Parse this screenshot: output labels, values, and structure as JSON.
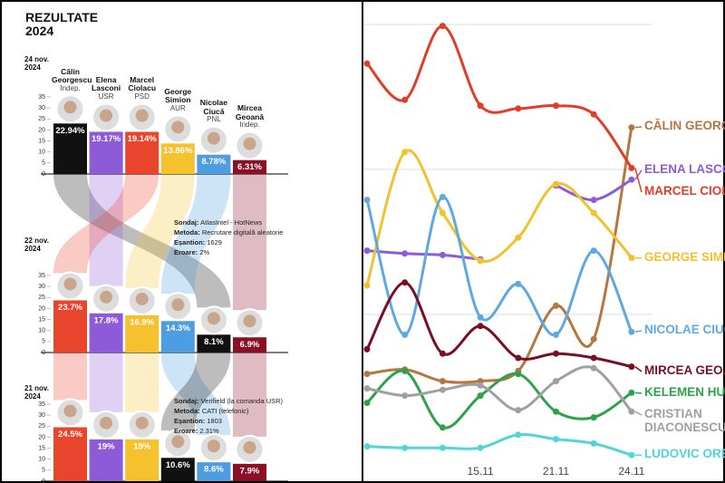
{
  "chart_data": [
    {
      "type": "bar",
      "title": "REZULTATE 2024",
      "date": "24 nov. 2024",
      "categories": [
        "Călin Georgescu",
        "Elena Lasconi",
        "Marcel Ciolacu",
        "George Simion",
        "Nicolae Ciucă",
        "Mircea Geoană"
      ],
      "parties": [
        "Indep.",
        "USR",
        "PSD",
        "AUR",
        "PNL",
        "Indep."
      ],
      "values": [
        22.94,
        19.17,
        19.14,
        13.86,
        8.78,
        6.31
      ],
      "value_labels": [
        "22.94%",
        "19.17%",
        "19.14%",
        "13.86%",
        "8.78%",
        "6.31%"
      ],
      "colors": [
        "#111111",
        "#8e5bd8",
        "#e8452c",
        "#f5c12e",
        "#4d9de0",
        "#8b1026"
      ],
      "ylim": [
        0,
        35
      ],
      "yticks": [
        0,
        5,
        10,
        15,
        20,
        25,
        30,
        35
      ]
    },
    {
      "type": "bar",
      "date": "22 nov. 2024",
      "categories": [
        null,
        null,
        null,
        null,
        null,
        null
      ],
      "values": [
        23.7,
        17.8,
        16.9,
        14.3,
        8.1,
        6.9
      ],
      "value_labels": [
        "23.7%",
        "17.8%",
        "16.9%",
        "14.3%",
        "8.1%",
        "6.9%"
      ],
      "colors": [
        "#e8452c",
        "#8e5bd8",
        "#f5c12e",
        "#4d9de0",
        "#111111",
        "#8b1026"
      ],
      "notes": [
        {
          "label": "Sondaj:",
          "text": "AtlasIntel - HotNews"
        },
        {
          "label": "Metoda:",
          "text": "Recrutare digitală aleatorie"
        },
        {
          "label": "Eșantion:",
          "text": "1629"
        },
        {
          "label": "Eroare:",
          "text": "2%"
        }
      ],
      "ylim": [
        0,
        35
      ],
      "yticks": [
        0,
        5,
        10,
        15,
        20,
        25,
        30,
        35
      ]
    },
    {
      "type": "bar",
      "date": "21 nov. 2024",
      "categories": [
        null,
        null,
        null,
        null,
        null,
        null
      ],
      "values": [
        24.5,
        19,
        19,
        10.6,
        8.6,
        7.9
      ],
      "value_labels": [
        "24.5%",
        "19%",
        "19%",
        "10.6%",
        "8.6%",
        "7.9%"
      ],
      "colors": [
        "#e8452c",
        "#8e5bd8",
        "#f5c12e",
        "#111111",
        "#4d9de0",
        "#8b1026"
      ],
      "notes": [
        {
          "label": "Sondaj:",
          "text": "Verifield (la comanda USR)"
        },
        {
          "label": "Metoda:",
          "text": "CATI (telefonic)"
        },
        {
          "label": "Eșantion:",
          "text": "1803"
        },
        {
          "label": "Eroare:",
          "text": "2.31%"
        }
      ],
      "ylim": [
        0,
        35
      ],
      "yticks": [
        0,
        5,
        10,
        15,
        20,
        25,
        30,
        35
      ]
    },
    {
      "type": "line",
      "categories": [
        null,
        null,
        null,
        "15.11",
        null,
        "21.11",
        null,
        "24.11"
      ],
      "series": [
        {
          "name": "CĂLIN GEORG",
          "color": "#b5773f",
          "values": [
            5.9,
            6.2,
            5.4,
            5.4,
            6.1,
            10.6,
            8.3,
            22.9
          ]
        },
        {
          "name": "ELENA LASCO",
          "color": "#8e5bd8",
          "values": [
            14.4,
            14.2,
            14.1,
            13.8,
            null,
            18.9,
            17.9,
            19.3
          ]
        },
        {
          "name": "MARCEL CIOL",
          "color": "#e23d28",
          "values": [
            27.3,
            24.8,
            29.9,
            24.4,
            24.2,
            24.4,
            23.8,
            20.1
          ]
        },
        {
          "name": "GEORGE SIMI",
          "color": "#f2c12e",
          "values": [
            12.0,
            21.2,
            17.0,
            13.7,
            15.3,
            19.0,
            17.0,
            13.9
          ]
        },
        {
          "name": "NICOLAE CIUC",
          "color": "#5fa8e0",
          "values": [
            17.9,
            8.6,
            18.1,
            9.8,
            12.1,
            8.6,
            14.4,
            8.8
          ]
        },
        {
          "name": "MIRCEA GEOA",
          "color": "#7a0f24",
          "values": [
            7.6,
            12.2,
            7.3,
            9.2,
            7.0,
            7.3,
            7.0,
            6.4
          ]
        },
        {
          "name": "KELEMEN HU",
          "color": "#2da24a",
          "values": [
            3.9,
            6.1,
            2.2,
            4.4,
            5.9,
            3.3,
            2.9,
            4.6
          ]
        },
        {
          "name": "CRISTIAN DIACONESCU",
          "color": "#a0a0a0",
          "values": [
            4.9,
            4.4,
            4.8,
            5.1,
            3.4,
            5.4,
            6.3,
            3.3
          ]
        },
        {
          "name": "LUDOVIC ORE",
          "color": "#4fd6d8",
          "values": [
            0.9,
            0.8,
            0.8,
            0.8,
            1.7,
            1.4,
            1.1,
            0.3
          ]
        }
      ],
      "ylim": [
        0,
        30
      ],
      "yticks": [
        10,
        20,
        30
      ],
      "ytick_labels": false,
      "grid": true
    }
  ]
}
